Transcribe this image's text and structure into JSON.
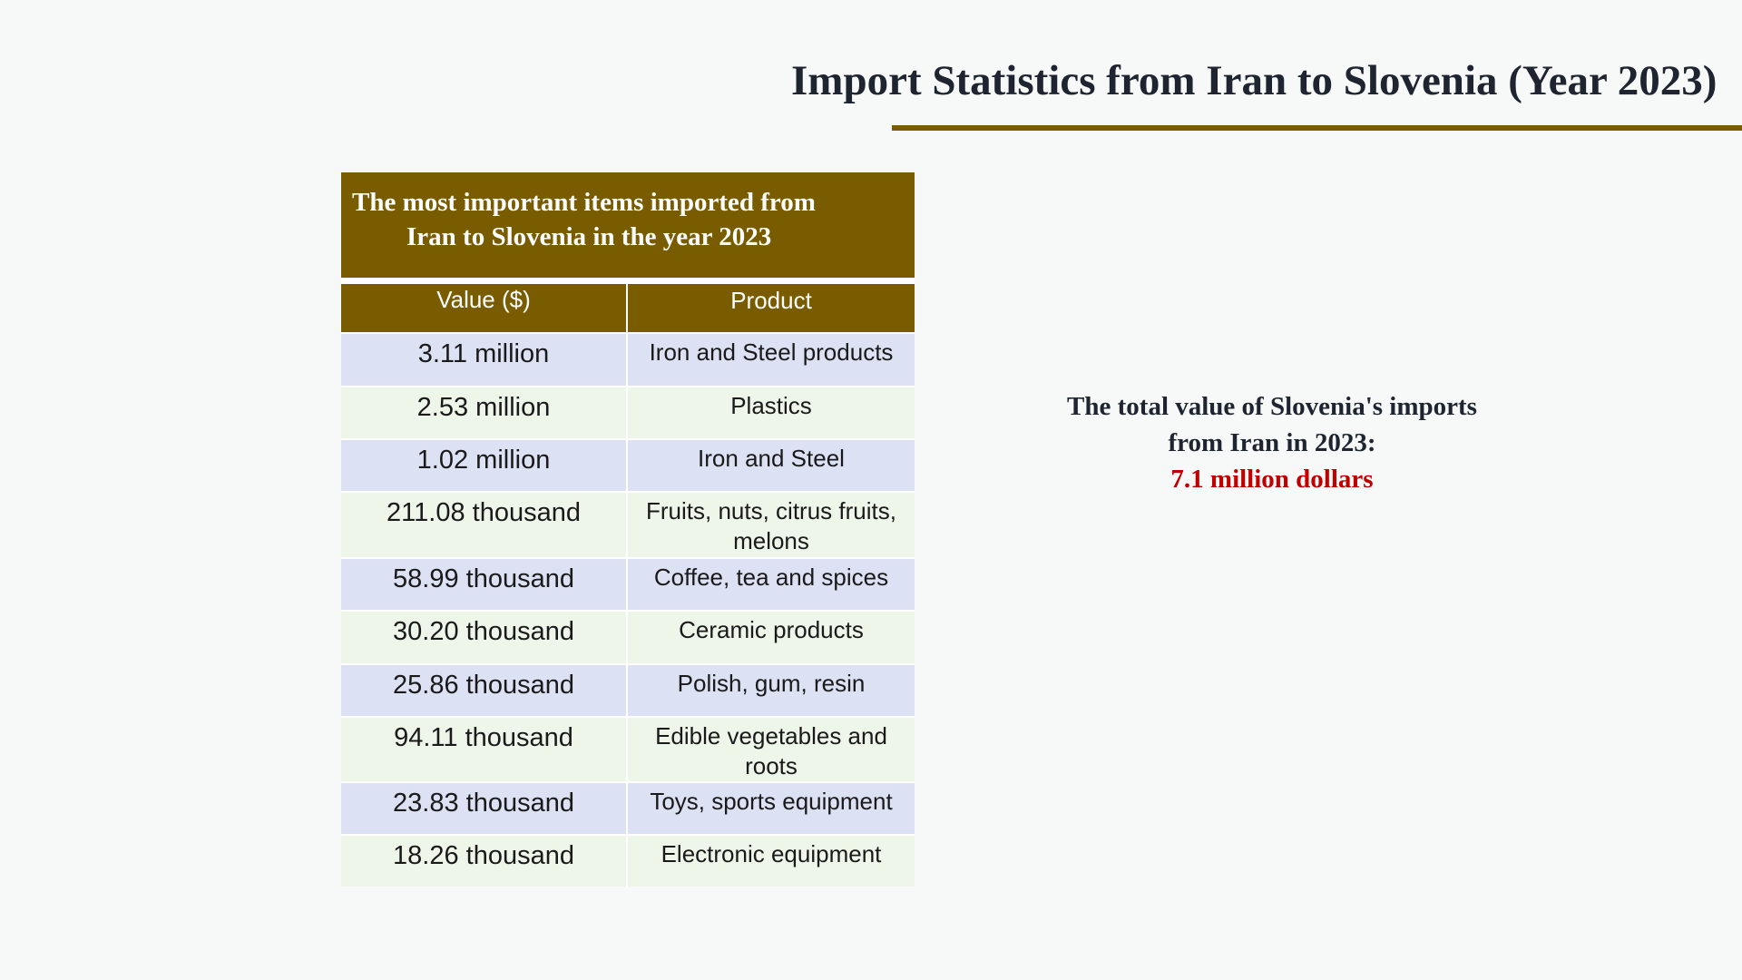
{
  "title": "Import Statistics from Iran to Slovenia (Year 2023)",
  "table": {
    "caption_line1": "The most important items imported from",
    "caption_line2": "Iran to Slovenia in the year 2023",
    "headers": [
      "Value ($)",
      "Product"
    ],
    "rows": [
      {
        "value": "3.11 million",
        "product": "Iron and Steel products"
      },
      {
        "value": "2.53 million",
        "product": "Plastics"
      },
      {
        "value": "1.02 million",
        "product": "Iron and Steel"
      },
      {
        "value": "211.08 thousand",
        "product": "Fruits, nuts, citrus fruits, melons"
      },
      {
        "value": "58.99 thousand",
        "product": "Coffee, tea and spices"
      },
      {
        "value": "30.20 thousand",
        "product": "Ceramic products"
      },
      {
        "value": "25.86 thousand",
        "product": "Polish, gum, resin"
      },
      {
        "value": "94.11 thousand",
        "product": "Edible vegetables and roots"
      },
      {
        "value": "23.83 thousand",
        "product": "Toys, sports equipment"
      },
      {
        "value": "18.26 thousand",
        "product": "Electronic equipment"
      }
    ]
  },
  "summary": {
    "line1": "The total value of Slovenia's imports",
    "line2": "from Iran in 2023:",
    "total": "7.1 million dollars"
  },
  "colors": {
    "accent": "#7a5c00",
    "highlight": "#c00000",
    "row_odd": "#dce1f3",
    "row_even": "#eef6ea"
  }
}
